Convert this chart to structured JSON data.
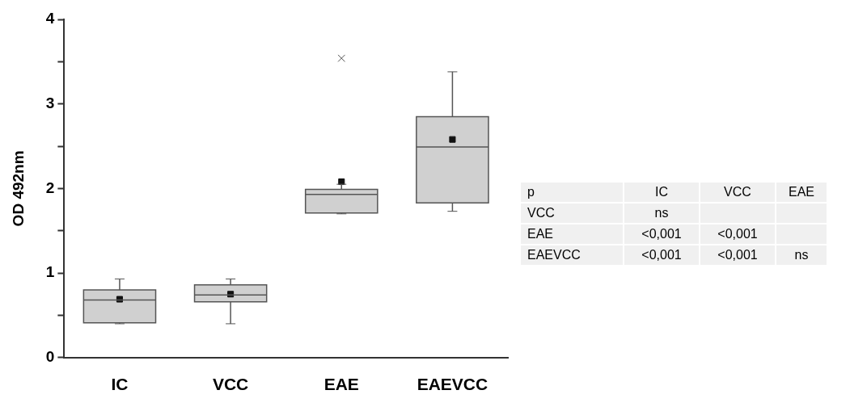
{
  "chart_data": [
    {
      "type": "box",
      "ylabel": "OD 492nm",
      "categories": [
        "IC",
        "VCC",
        "EAE",
        "EAEVCC"
      ],
      "color": "#d0d0d0",
      "marker": "square",
      "grid": false,
      "boxes": [
        {
          "low": 0.4,
          "q1": 0.41,
          "median": 0.68,
          "q3": 0.8,
          "high": 0.93,
          "mean": 0.69
        },
        {
          "low": 0.4,
          "q1": 0.66,
          "median": 0.74,
          "q3": 0.86,
          "high": 0.93,
          "mean": 0.75
        },
        {
          "low": 1.7,
          "q1": 1.71,
          "median": 1.93,
          "q3": 1.99,
          "high": 2.05,
          "mean": 2.08,
          "outliers": [
            3.54
          ]
        },
        {
          "low": 1.73,
          "q1": 1.83,
          "median": 2.49,
          "q3": 2.85,
          "high": 3.38,
          "mean": 2.58
        }
      ],
      "ylim": [
        0,
        4
      ],
      "yticks": [
        0,
        {
          "value": 0.5,
          "label": null
        },
        1,
        {
          "value": 1.5,
          "label": null
        },
        2,
        {
          "value": 2.5,
          "label": null
        },
        3,
        {
          "value": 3.5,
          "label": null
        },
        4
      ]
    },
    {
      "type": "other",
      "title": "p",
      "categories": [
        "IC",
        "VCC",
        "EAE"
      ],
      "y_categories": [
        "VCC",
        "EAE",
        "EAEVCC"
      ],
      "cell_labels": [
        [
          "ns",
          null,
          null
        ],
        [
          "<0,001",
          "<0,001",
          null
        ],
        [
          "<0,001",
          "<0,001",
          "ns"
        ]
      ]
    }
  ]
}
